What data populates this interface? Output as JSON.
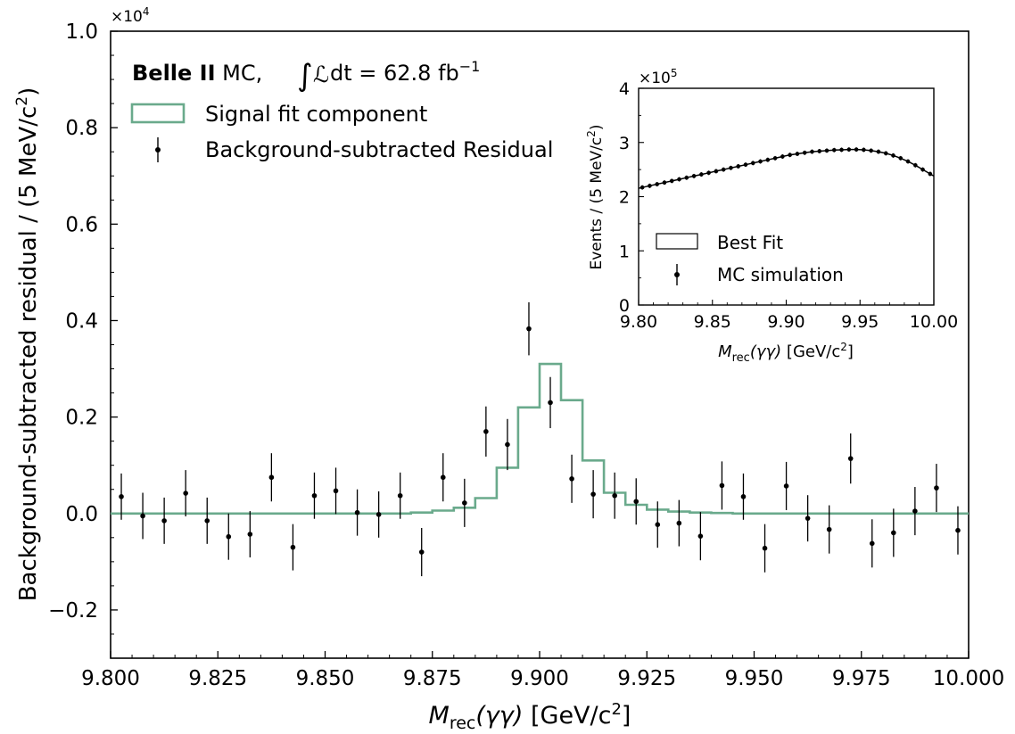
{
  "chart_data": [
    {
      "type": "scatter",
      "xlabel": {
        "var": "M",
        "sub": "rec",
        "args": "(γγ)",
        "unit": "[GeV/c",
        "sup": "2",
        "close": "]"
      },
      "ylabel": {
        "main": "Background-subtracted residual / (5 MeV/c",
        "sup": "2",
        "close": ")"
      },
      "y_multiplier": {
        "base": "×10",
        "exp": "4"
      },
      "xlim": [
        9.8,
        10.0
      ],
      "ylim": [
        -0.3,
        1.0
      ],
      "xticks": [
        "9.800",
        "9.825",
        "9.850",
        "9.875",
        "9.900",
        "9.925",
        "9.950",
        "9.975",
        "10.000"
      ],
      "xtick_values": [
        9.8,
        9.825,
        9.85,
        9.875,
        9.9,
        9.925,
        9.95,
        9.975,
        10.0
      ],
      "yticks": [
        "−0.2",
        "0.0",
        "0.2",
        "0.4",
        "0.6",
        "0.8",
        "1.0"
      ],
      "ytick_values": [
        -0.2,
        0.0,
        0.2,
        0.4,
        0.6,
        0.8,
        1.0
      ],
      "annotation": {
        "experiment": "Belle II",
        "sample": "MC,",
        "lumi_text": "dt = 62.8 fb",
        "lumi_exp": "−1"
      },
      "legend": {
        "location": "top-left",
        "entries": [
          "Signal fit component",
          "Background-subtracted Residual"
        ]
      },
      "series": [
        {
          "name": "Signal fit component",
          "style": "step",
          "color": "#6aaa8c",
          "bin_edges": [
            9.8,
            9.805,
            9.81,
            9.815,
            9.82,
            9.825,
            9.83,
            9.835,
            9.84,
            9.845,
            9.85,
            9.855,
            9.86,
            9.865,
            9.87,
            9.875,
            9.88,
            9.885,
            9.89,
            9.895,
            9.9,
            9.905,
            9.91,
            9.915,
            9.92,
            9.925,
            9.93,
            9.935,
            9.94,
            9.945,
            9.95,
            9.955,
            9.96,
            9.965,
            9.97,
            9.975,
            9.98,
            9.985,
            9.99,
            9.995,
            10.0
          ],
          "values": [
            0,
            0,
            0,
            0,
            0,
            0,
            0,
            0,
            0,
            0,
            0,
            0,
            0,
            0,
            0.002,
            0.006,
            0.012,
            0.032,
            0.095,
            0.22,
            0.31,
            0.235,
            0.11,
            0.043,
            0.018,
            0.008,
            0.004,
            0.002,
            0.001,
            0,
            0,
            0,
            0,
            0,
            0,
            0,
            0,
            0,
            0,
            0
          ]
        },
        {
          "name": "Background-subtracted Residual",
          "style": "errorbar",
          "color": "#000000",
          "x": [
            9.8025,
            9.8075,
            9.8125,
            9.8175,
            9.8225,
            9.8275,
            9.8325,
            9.8375,
            9.8425,
            9.8475,
            9.8525,
            9.8575,
            9.8625,
            9.8675,
            9.8725,
            9.8775,
            9.8825,
            9.8875,
            9.8925,
            9.8975,
            9.9025,
            9.9075,
            9.9125,
            9.9175,
            9.9225,
            9.9275,
            9.9325,
            9.9375,
            9.9425,
            9.9475,
            9.9525,
            9.9575,
            9.9625,
            9.9675,
            9.9725,
            9.9775,
            9.9825,
            9.9875,
            9.9925,
            9.9975
          ],
          "y": [
            0.035,
            -0.005,
            -0.015,
            0.042,
            -0.015,
            -0.048,
            -0.043,
            0.075,
            -0.07,
            0.037,
            0.047,
            0.002,
            -0.002,
            0.037,
            -0.08,
            0.075,
            0.022,
            0.17,
            0.143,
            0.383,
            0.23,
            0.072,
            0.04,
            0.037,
            0.025,
            -0.023,
            -0.02,
            -0.047,
            0.058,
            0.035,
            -0.072,
            0.057,
            -0.01,
            -0.033,
            0.114,
            -0.062,
            -0.04,
            0.005,
            0.053,
            -0.035
          ],
          "yerr": [
            0.048,
            0.048,
            0.048,
            0.048,
            0.048,
            0.048,
            0.048,
            0.05,
            0.048,
            0.048,
            0.048,
            0.048,
            0.048,
            0.048,
            0.05,
            0.05,
            0.05,
            0.052,
            0.053,
            0.055,
            0.053,
            0.05,
            0.05,
            0.048,
            0.048,
            0.048,
            0.048,
            0.05,
            0.05,
            0.048,
            0.05,
            0.05,
            0.048,
            0.05,
            0.052,
            0.05,
            0.05,
            0.05,
            0.05,
            0.05
          ]
        }
      ]
    },
    {
      "type": "line",
      "inset": true,
      "xlabel": {
        "var": "M",
        "sub": "rec",
        "args": "(γγ)",
        "unit": "[GeV/c",
        "sup": "2",
        "close": "]"
      },
      "ylabel": {
        "main": "Events / (5 MeV/c",
        "sup": "2",
        "close": ")"
      },
      "y_multiplier": {
        "base": "×10",
        "exp": "5"
      },
      "xlim": [
        9.8,
        10.0
      ],
      "ylim": [
        0,
        4
      ],
      "xticks": [
        "9.80",
        "9.85",
        "9.90",
        "9.95",
        "10.00"
      ],
      "xtick_values": [
        9.8,
        9.85,
        9.9,
        9.95,
        10.0
      ],
      "yticks": [
        "0",
        "1",
        "2",
        "3",
        "4"
      ],
      "ytick_values": [
        0,
        1,
        2,
        3,
        4
      ],
      "legend": {
        "location": "lower-left",
        "entries": [
          "Best Fit",
          "MC simulation"
        ]
      },
      "series": [
        {
          "name": "Best Fit",
          "style": "line",
          "color": "#000000",
          "x": [
            9.8025,
            9.8075,
            9.8125,
            9.8175,
            9.8225,
            9.8275,
            9.8325,
            9.8375,
            9.8425,
            9.8475,
            9.8525,
            9.8575,
            9.8625,
            9.8675,
            9.8725,
            9.8775,
            9.8825,
            9.8875,
            9.8925,
            9.8975,
            9.9025,
            9.9075,
            9.9125,
            9.9175,
            9.9225,
            9.9275,
            9.9325,
            9.9375,
            9.9425,
            9.9475,
            9.9525,
            9.9575,
            9.9625,
            9.9675,
            9.9725,
            9.9775,
            9.9825,
            9.9875,
            9.9925,
            9.9975
          ],
          "y": [
            2.17,
            2.2,
            2.23,
            2.26,
            2.29,
            2.32,
            2.35,
            2.38,
            2.41,
            2.44,
            2.47,
            2.5,
            2.53,
            2.56,
            2.59,
            2.62,
            2.65,
            2.68,
            2.71,
            2.74,
            2.77,
            2.79,
            2.81,
            2.83,
            2.84,
            2.85,
            2.86,
            2.865,
            2.87,
            2.87,
            2.865,
            2.85,
            2.83,
            2.8,
            2.76,
            2.71,
            2.65,
            2.58,
            2.5,
            2.42
          ]
        },
        {
          "name": "MC simulation",
          "style": "errorbar",
          "color": "#000000",
          "x": [
            9.8025,
            9.8075,
            9.8125,
            9.8175,
            9.8225,
            9.8275,
            9.8325,
            9.8375,
            9.8425,
            9.8475,
            9.8525,
            9.8575,
            9.8625,
            9.8675,
            9.8725,
            9.8775,
            9.8825,
            9.8875,
            9.8925,
            9.8975,
            9.9025,
            9.9075,
            9.9125,
            9.9175,
            9.9225,
            9.9275,
            9.9325,
            9.9375,
            9.9425,
            9.9475,
            9.9525,
            9.9575,
            9.9625,
            9.9675,
            9.9725,
            9.9775,
            9.9825,
            9.9875,
            9.9925,
            9.9975
          ],
          "y": [
            2.17,
            2.2,
            2.23,
            2.26,
            2.29,
            2.32,
            2.35,
            2.38,
            2.41,
            2.44,
            2.47,
            2.5,
            2.53,
            2.56,
            2.59,
            2.62,
            2.65,
            2.68,
            2.71,
            2.74,
            2.77,
            2.79,
            2.81,
            2.83,
            2.84,
            2.85,
            2.86,
            2.865,
            2.87,
            2.87,
            2.865,
            2.85,
            2.83,
            2.8,
            2.76,
            2.71,
            2.65,
            2.58,
            2.5,
            2.42
          ]
        }
      ]
    }
  ]
}
